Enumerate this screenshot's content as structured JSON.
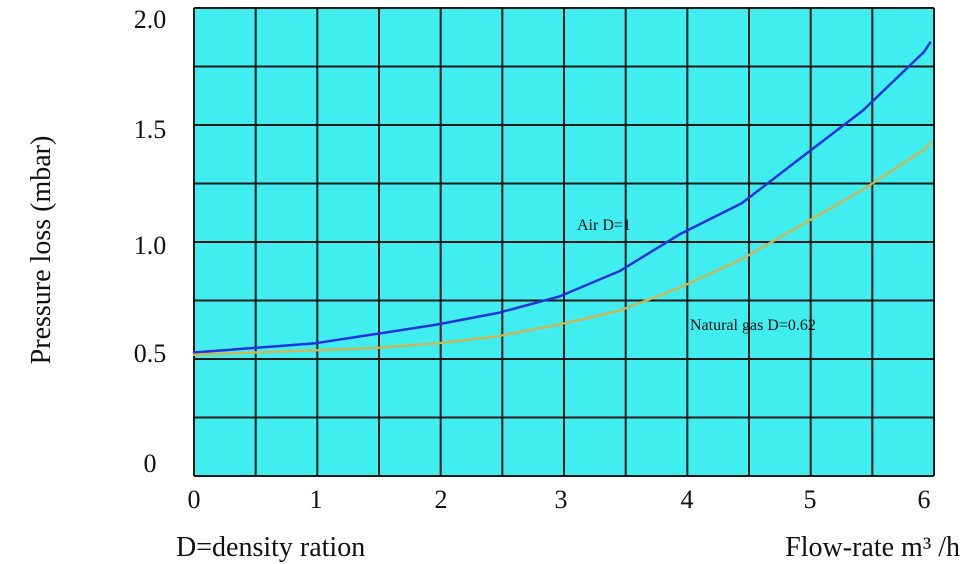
{
  "chart_data": {
    "type": "line",
    "ylabel": "Pressure loss (mbar)",
    "xlabel": "Flow-rate m³ /h",
    "footnote": "D=density ration",
    "x_ticks": [
      "0",
      "1",
      "2",
      "3",
      "4",
      "5",
      "6"
    ],
    "y_ticks": [
      "0",
      "0.5",
      "1.0",
      "1.5",
      "2.0"
    ],
    "xlim": [
      0,
      6
    ],
    "ylim": [
      0,
      2
    ],
    "grid": true,
    "colors": {
      "plot_bg": "#40eef0",
      "grid": "#1a1a1a",
      "air": "#2233dd",
      "gas": "#c8b85a"
    },
    "series": [
      {
        "name": "Air D=1",
        "x": [
          0,
          0.5,
          1,
          1.5,
          2,
          2.5,
          3,
          3.5,
          4,
          4.5,
          5,
          5.5,
          6,
          6.05
        ],
        "y": [
          0.53,
          0.55,
          0.57,
          0.61,
          0.65,
          0.7,
          0.77,
          0.88,
          1.04,
          1.17,
          1.37,
          1.57,
          1.82,
          1.86
        ]
      },
      {
        "name": "Natural gas D=0.62",
        "x": [
          0,
          0.5,
          1,
          1.5,
          2,
          2.5,
          3,
          3.5,
          4,
          4.5,
          5,
          5.5,
          6,
          6.05
        ],
        "y": [
          0.52,
          0.53,
          0.54,
          0.55,
          0.57,
          0.6,
          0.65,
          0.71,
          0.81,
          0.93,
          1.08,
          1.23,
          1.4,
          1.43
        ]
      }
    ],
    "annotations": [
      {
        "text": "Air D=1",
        "x": 3.0,
        "y": 1.07
      },
      {
        "text": "Natural gas D=0.62",
        "x": 4.05,
        "y": 0.65
      }
    ]
  }
}
